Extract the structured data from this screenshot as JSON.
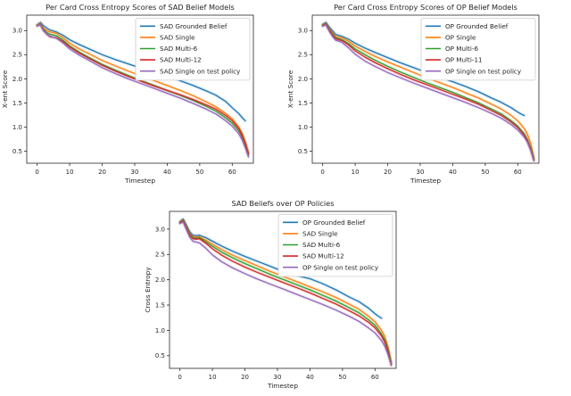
{
  "figure": {
    "background": "#ffffff",
    "axis_color": "#262626",
    "text_color": "#262626",
    "legend_border": "#cccccc"
  },
  "chart_data": [
    {
      "type": "line",
      "title": "Per Card Cross Entropy Scores of SAD Belief Models",
      "xlabel": "Timestep",
      "ylabel": "X-ent Score",
      "xlim": [
        -3.2,
        66.5
      ],
      "ylim": [
        0.25,
        3.32
      ],
      "xticks": [
        0,
        10,
        20,
        30,
        40,
        50,
        60
      ],
      "yticks": [
        0.5,
        1.0,
        1.5,
        2.0,
        2.5,
        3.0
      ],
      "grid": false,
      "legend_position": "upper-right",
      "series": [
        {
          "name": "SAD Grounded Belief",
          "color": "#1f77b4",
          "x": [
            0,
            1,
            2,
            3,
            4,
            5,
            6,
            8,
            10,
            13,
            16,
            20,
            24,
            28,
            32,
            36,
            40,
            44,
            48,
            52,
            55,
            58,
            60,
            62,
            63,
            64
          ],
          "y": [
            3.12,
            3.17,
            3.1,
            3.05,
            3.01,
            2.99,
            2.97,
            2.9,
            2.81,
            2.71,
            2.62,
            2.5,
            2.4,
            2.31,
            2.22,
            2.13,
            2.05,
            1.96,
            1.86,
            1.75,
            1.66,
            1.53,
            1.4,
            1.28,
            1.2,
            1.13
          ]
        },
        {
          "name": "SAD Single",
          "color": "#ff7f0e",
          "x": [
            0,
            1,
            2,
            3,
            4,
            5,
            6,
            8,
            10,
            13,
            16,
            20,
            24,
            28,
            32,
            36,
            40,
            44,
            48,
            52,
            55,
            58,
            60,
            62,
            63,
            64,
            65
          ],
          "y": [
            3.11,
            3.15,
            3.05,
            3.0,
            2.97,
            2.96,
            2.94,
            2.85,
            2.74,
            2.62,
            2.52,
            2.38,
            2.27,
            2.16,
            2.06,
            1.96,
            1.86,
            1.76,
            1.65,
            1.52,
            1.42,
            1.28,
            1.17,
            1.0,
            0.88,
            0.7,
            0.47
          ]
        },
        {
          "name": "SAD Multi-6",
          "color": "#2ca02c",
          "x": [
            0,
            1,
            2,
            3,
            4,
            5,
            6,
            8,
            10,
            13,
            16,
            20,
            24,
            28,
            32,
            36,
            40,
            44,
            48,
            52,
            55,
            58,
            60,
            62,
            63,
            64,
            65
          ],
          "y": [
            3.1,
            3.13,
            3.02,
            2.96,
            2.92,
            2.91,
            2.89,
            2.8,
            2.68,
            2.55,
            2.44,
            2.3,
            2.18,
            2.07,
            1.96,
            1.86,
            1.76,
            1.66,
            1.55,
            1.43,
            1.33,
            1.19,
            1.08,
            0.92,
            0.8,
            0.63,
            0.42
          ]
        },
        {
          "name": "SAD Multi-12",
          "color": "#d62728",
          "x": [
            0,
            1,
            2,
            3,
            4,
            5,
            6,
            8,
            10,
            13,
            16,
            20,
            24,
            28,
            32,
            36,
            40,
            44,
            48,
            52,
            55,
            58,
            60,
            62,
            63,
            64,
            65
          ],
          "y": [
            3.1,
            3.12,
            3.0,
            2.92,
            2.87,
            2.86,
            2.85,
            2.77,
            2.66,
            2.53,
            2.42,
            2.28,
            2.16,
            2.05,
            1.95,
            1.85,
            1.76,
            1.67,
            1.57,
            1.46,
            1.37,
            1.24,
            1.13,
            0.97,
            0.84,
            0.66,
            0.45
          ]
        },
        {
          "name": "SAD Single on test policy",
          "color": "#9467bd",
          "x": [
            0,
            1,
            2,
            3,
            4,
            5,
            6,
            8,
            10,
            13,
            16,
            20,
            24,
            28,
            32,
            36,
            40,
            44,
            48,
            52,
            55,
            58,
            60,
            62,
            63,
            64,
            65
          ],
          "y": [
            3.1,
            3.12,
            2.99,
            2.93,
            2.88,
            2.86,
            2.84,
            2.74,
            2.62,
            2.49,
            2.38,
            2.23,
            2.11,
            2.0,
            1.9,
            1.8,
            1.7,
            1.6,
            1.49,
            1.37,
            1.27,
            1.13,
            1.02,
            0.86,
            0.74,
            0.57,
            0.38
          ]
        }
      ]
    },
    {
      "type": "line",
      "title": "Per Card Cross Entropy Scores of OP Belief Models",
      "xlabel": "Timestep",
      "ylabel": "X-ent Score",
      "xlim": [
        -3.2,
        66.5
      ],
      "ylim": [
        0.25,
        3.32
      ],
      "xticks": [
        0,
        10,
        20,
        30,
        40,
        50,
        60
      ],
      "yticks": [
        0.5,
        1.0,
        1.5,
        2.0,
        2.5,
        3.0
      ],
      "grid": false,
      "legend_position": "upper-right",
      "series": [
        {
          "name": "OP Grounded Belief",
          "color": "#1f77b4",
          "x": [
            0,
            1,
            2,
            3,
            4,
            5,
            6,
            8,
            10,
            13,
            16,
            20,
            24,
            28,
            32,
            36,
            40,
            44,
            48,
            52,
            55,
            58,
            60,
            61,
            62
          ],
          "y": [
            3.13,
            3.17,
            3.08,
            3.0,
            2.92,
            2.9,
            2.88,
            2.82,
            2.74,
            2.64,
            2.55,
            2.44,
            2.33,
            2.23,
            2.13,
            2.03,
            1.94,
            1.84,
            1.73,
            1.6,
            1.51,
            1.4,
            1.31,
            1.27,
            1.24
          ]
        },
        {
          "name": "OP Single",
          "color": "#ff7f0e",
          "x": [
            0,
            1,
            2,
            3,
            4,
            5,
            6,
            8,
            10,
            13,
            16,
            20,
            24,
            28,
            32,
            36,
            40,
            44,
            48,
            52,
            55,
            58,
            60,
            62,
            63,
            64,
            65
          ],
          "y": [
            3.12,
            3.15,
            3.05,
            2.96,
            2.88,
            2.86,
            2.85,
            2.78,
            2.68,
            2.57,
            2.47,
            2.35,
            2.24,
            2.13,
            2.02,
            1.92,
            1.82,
            1.71,
            1.6,
            1.47,
            1.37,
            1.24,
            1.13,
            0.97,
            0.85,
            0.66,
            0.36
          ]
        },
        {
          "name": "OP Multi-6",
          "color": "#2ca02c",
          "x": [
            0,
            1,
            2,
            3,
            4,
            5,
            6,
            8,
            10,
            13,
            16,
            20,
            24,
            28,
            32,
            36,
            40,
            44,
            48,
            52,
            55,
            58,
            60,
            62,
            63,
            64,
            65
          ],
          "y": [
            3.11,
            3.14,
            3.03,
            2.93,
            2.85,
            2.83,
            2.81,
            2.73,
            2.62,
            2.5,
            2.39,
            2.26,
            2.14,
            2.03,
            1.92,
            1.82,
            1.72,
            1.61,
            1.5,
            1.37,
            1.27,
            1.13,
            1.02,
            0.86,
            0.74,
            0.56,
            0.33
          ]
        },
        {
          "name": "OP Multi-11",
          "color": "#d62728",
          "x": [
            0,
            1,
            2,
            3,
            4,
            5,
            6,
            8,
            10,
            13,
            16,
            20,
            24,
            28,
            32,
            36,
            40,
            44,
            48,
            52,
            55,
            58,
            60,
            62,
            63,
            64,
            65
          ],
          "y": [
            3.1,
            3.13,
            3.01,
            2.91,
            2.83,
            2.81,
            2.79,
            2.7,
            2.58,
            2.45,
            2.34,
            2.21,
            2.09,
            1.98,
            1.88,
            1.78,
            1.68,
            1.58,
            1.47,
            1.34,
            1.24,
            1.1,
            0.99,
            0.83,
            0.71,
            0.53,
            0.31
          ]
        },
        {
          "name": "OP Single on test policy",
          "color": "#9467bd",
          "x": [
            0,
            1,
            2,
            3,
            4,
            5,
            6,
            8,
            10,
            13,
            16,
            20,
            24,
            28,
            32,
            36,
            40,
            44,
            48,
            52,
            55,
            58,
            60,
            62,
            63,
            64,
            65
          ],
          "y": [
            3.09,
            3.12,
            2.99,
            2.88,
            2.8,
            2.78,
            2.75,
            2.64,
            2.51,
            2.37,
            2.26,
            2.13,
            2.02,
            1.91,
            1.81,
            1.71,
            1.61,
            1.51,
            1.4,
            1.28,
            1.18,
            1.05,
            0.94,
            0.79,
            0.68,
            0.51,
            0.3
          ]
        }
      ]
    },
    {
      "type": "line",
      "title": "SAD Beliefs over OP Policies",
      "xlabel": "Timestep",
      "ylabel": "Cross Entropy",
      "xlim": [
        -3.2,
        66.5
      ],
      "ylim": [
        0.25,
        3.35
      ],
      "xticks": [
        0,
        10,
        20,
        30,
        40,
        50,
        60
      ],
      "yticks": [
        0.5,
        1.0,
        1.5,
        2.0,
        2.5,
        3.0
      ],
      "grid": false,
      "legend_position": "upper-right",
      "series": [
        {
          "name": "OP Grounded Belief",
          "color": "#1f77b4",
          "x": [
            0,
            1,
            2,
            3,
            4,
            5,
            6,
            8,
            10,
            13,
            16,
            20,
            24,
            28,
            32,
            36,
            40,
            44,
            48,
            52,
            55,
            58,
            60,
            61,
            62
          ],
          "y": [
            3.15,
            3.2,
            3.08,
            2.95,
            2.88,
            2.87,
            2.88,
            2.83,
            2.76,
            2.66,
            2.57,
            2.46,
            2.36,
            2.26,
            2.16,
            2.08,
            2.02,
            1.92,
            1.8,
            1.66,
            1.57,
            1.44,
            1.33,
            1.28,
            1.24
          ]
        },
        {
          "name": "SAD Single",
          "color": "#ff7f0e",
          "x": [
            0,
            1,
            2,
            3,
            4,
            5,
            6,
            8,
            10,
            13,
            16,
            20,
            24,
            28,
            32,
            36,
            40,
            44,
            48,
            52,
            55,
            58,
            60,
            62,
            63,
            64,
            65
          ],
          "y": [
            3.14,
            3.18,
            3.05,
            2.92,
            2.85,
            2.84,
            2.85,
            2.78,
            2.7,
            2.59,
            2.49,
            2.38,
            2.27,
            2.16,
            2.06,
            1.96,
            1.86,
            1.76,
            1.65,
            1.52,
            1.42,
            1.28,
            1.17,
            1.0,
            0.88,
            0.68,
            0.38
          ]
        },
        {
          "name": "SAD Multi-6",
          "color": "#2ca02c",
          "x": [
            0,
            1,
            2,
            3,
            4,
            5,
            6,
            8,
            10,
            13,
            16,
            20,
            24,
            28,
            32,
            36,
            40,
            44,
            48,
            52,
            55,
            58,
            60,
            62,
            63,
            64,
            65
          ],
          "y": [
            3.13,
            3.17,
            3.04,
            2.9,
            2.83,
            2.82,
            2.83,
            2.75,
            2.66,
            2.54,
            2.44,
            2.32,
            2.21,
            2.1,
            2.0,
            1.9,
            1.8,
            1.69,
            1.58,
            1.45,
            1.35,
            1.21,
            1.1,
            0.93,
            0.81,
            0.62,
            0.35
          ]
        },
        {
          "name": "SAD Multi-12",
          "color": "#d62728",
          "x": [
            0,
            1,
            2,
            3,
            4,
            5,
            6,
            8,
            10,
            13,
            16,
            20,
            24,
            28,
            32,
            36,
            40,
            44,
            48,
            52,
            55,
            58,
            60,
            62,
            63,
            64,
            65
          ],
          "y": [
            3.12,
            3.16,
            3.02,
            2.88,
            2.81,
            2.8,
            2.81,
            2.72,
            2.61,
            2.48,
            2.37,
            2.25,
            2.14,
            2.04,
            1.94,
            1.84,
            1.74,
            1.63,
            1.52,
            1.39,
            1.29,
            1.16,
            1.05,
            0.89,
            0.77,
            0.58,
            0.31
          ]
        },
        {
          "name": "OP Single on test policy",
          "color": "#9467bd",
          "x": [
            0,
            1,
            2,
            3,
            4,
            5,
            6,
            8,
            10,
            13,
            16,
            20,
            24,
            28,
            32,
            36,
            40,
            44,
            48,
            52,
            55,
            58,
            60,
            62,
            63,
            64,
            65
          ],
          "y": [
            3.11,
            3.14,
            2.99,
            2.84,
            2.76,
            2.74,
            2.73,
            2.62,
            2.49,
            2.35,
            2.24,
            2.12,
            2.01,
            1.91,
            1.81,
            1.71,
            1.61,
            1.51,
            1.4,
            1.28,
            1.18,
            1.05,
            0.95,
            0.8,
            0.69,
            0.52,
            0.33
          ]
        }
      ]
    }
  ]
}
